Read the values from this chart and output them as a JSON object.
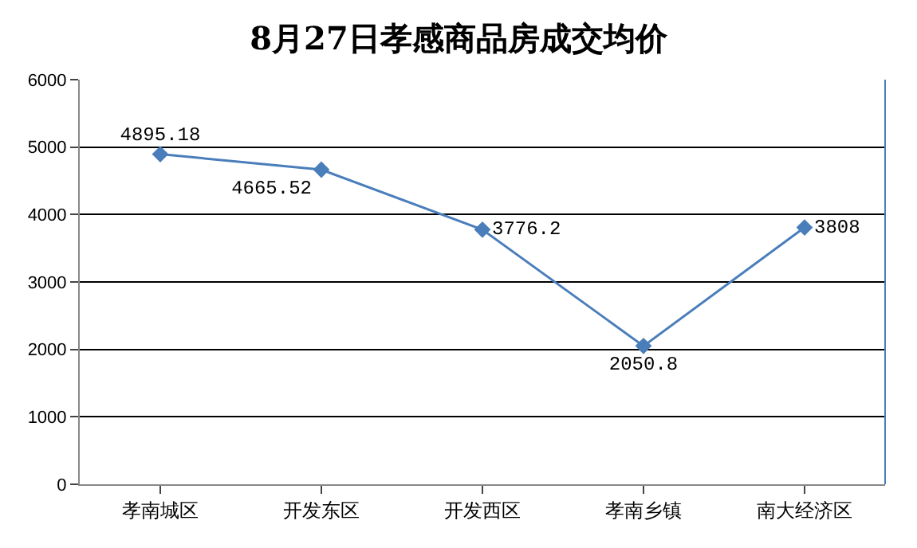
{
  "chart_data": {
    "type": "line",
    "title": "8月27日孝感商品房成交均价",
    "categories": [
      "孝南城区",
      "开发东区",
      "开发西区",
      "孝南乡镇",
      "南大经济区"
    ],
    "series": [
      {
        "color": "#4a7ebb",
        "values": [
          4895.18,
          4665.52,
          3776.2,
          2050.8,
          3808
        ]
      }
    ],
    "ylim": [
      0,
      6000
    ],
    "yticks": [
      0,
      1000,
      2000,
      3000,
      4000,
      5000,
      6000
    ],
    "grid": "y",
    "marker": "diamond",
    "line_style": "solid",
    "data_labels": true,
    "legend": false
  }
}
